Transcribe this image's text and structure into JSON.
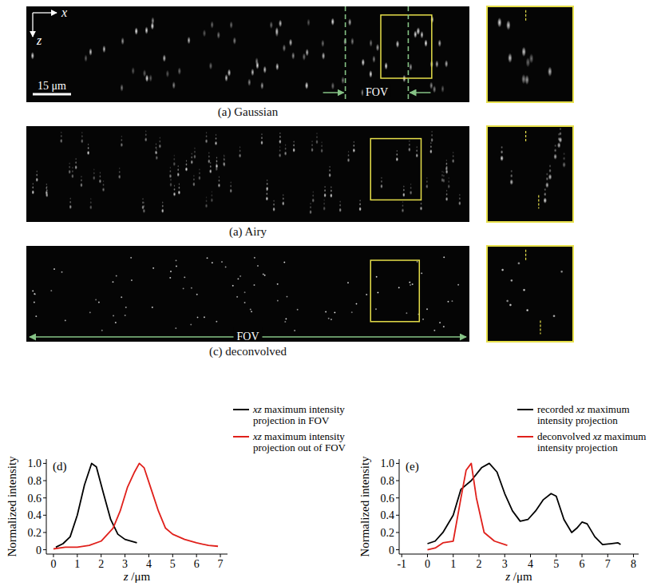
{
  "images": [
    {
      "caption": "(a) Gaussian",
      "x_label": "x",
      "z_label": "z",
      "scale_bar": "15 μm",
      "fov": "FOV"
    },
    {
      "caption": "(a) Airy"
    },
    {
      "caption": "(c) deconvolved",
      "fov": "FOV"
    }
  ],
  "chart_data": [
    {
      "type": "line",
      "panel": "(d)",
      "x_label": "z /μm",
      "y_label": "Normalized intensity",
      "xlim": [
        -0.3,
        7.3
      ],
      "xticks": [
        0,
        1,
        2,
        3,
        4,
        5,
        6,
        7
      ],
      "ylim": [
        -0.05,
        1.05
      ],
      "yticks": [
        0,
        0.2,
        0.4,
        0.6,
        0.8,
        {
          "value": 1,
          "label": "1.0"
        }
      ],
      "legend": "top right",
      "series": [
        {
          "name": "xz maximum intensity projection in FOV",
          "color": "#000000",
          "x": [
            0.1,
            0.4,
            0.7,
            1.0,
            1.3,
            1.6,
            1.8,
            2.1,
            2.4,
            2.7,
            3.0,
            3.5
          ],
          "values": [
            0.03,
            0.07,
            0.15,
            0.4,
            0.75,
            1.0,
            0.96,
            0.65,
            0.35,
            0.18,
            0.12,
            0.08
          ]
        },
        {
          "name": "xz maximum intensity projection out of FOV",
          "color": "#e0201b",
          "x": [
            0,
            0.5,
            1.0,
            1.5,
            2.0,
            2.5,
            2.8,
            3.1,
            3.4,
            3.6,
            3.8,
            4.1,
            4.4,
            4.7,
            5.0,
            5.5,
            6.0,
            6.5,
            6.9
          ],
          "values": [
            0.01,
            0.03,
            0.03,
            0.05,
            0.1,
            0.25,
            0.45,
            0.72,
            0.9,
            1.0,
            0.95,
            0.7,
            0.45,
            0.25,
            0.18,
            0.12,
            0.08,
            0.05,
            0.04
          ]
        }
      ]
    },
    {
      "type": "line",
      "panel": "(e)",
      "x_label": "z /μm",
      "y_label": "Normalized intensity",
      "xlim": [
        -1.1,
        8.2
      ],
      "xticks": [
        -1,
        0,
        1,
        2,
        3,
        4,
        5,
        6,
        7,
        8
      ],
      "ylim": [
        -0.05,
        1.05
      ],
      "yticks": [
        0,
        0.2,
        0.4,
        0.6,
        0.8,
        {
          "value": 1,
          "label": "1.0"
        }
      ],
      "legend": "top right",
      "series": [
        {
          "name": "recorded xz maximum intensity projection",
          "color": "#000000",
          "x": [
            0,
            0.3,
            0.6,
            1.0,
            1.3,
            1.7,
            2.1,
            2.4,
            2.7,
            3.0,
            3.3,
            3.6,
            3.9,
            4.2,
            4.5,
            4.8,
            5.0,
            5.3,
            5.6,
            5.8,
            6.0,
            6.2,
            6.5,
            6.8,
            7.1,
            7.4,
            7.5
          ],
          "values": [
            0.07,
            0.1,
            0.2,
            0.4,
            0.7,
            0.8,
            0.95,
            1.0,
            0.9,
            0.65,
            0.45,
            0.33,
            0.35,
            0.45,
            0.58,
            0.65,
            0.62,
            0.35,
            0.2,
            0.25,
            0.32,
            0.3,
            0.15,
            0.06,
            0.07,
            0.08,
            0.06
          ]
        },
        {
          "name": "deconvolved xz maximum intensity projection",
          "color": "#e0201b",
          "x": [
            0,
            0.3,
            0.6,
            1.0,
            1.3,
            1.5,
            1.7,
            1.9,
            2.2,
            2.6,
            3.1
          ],
          "values": [
            0,
            0.02,
            0.08,
            0.1,
            0.6,
            0.92,
            1.0,
            0.6,
            0.2,
            0.1,
            0.05
          ]
        }
      ]
    }
  ]
}
